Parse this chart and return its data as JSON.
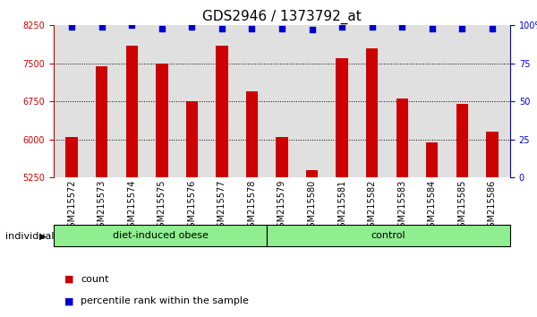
{
  "title": "GDS2946 / 1373792_at",
  "categories": [
    "GSM215572",
    "GSM215573",
    "GSM215574",
    "GSM215575",
    "GSM215576",
    "GSM215577",
    "GSM215578",
    "GSM215579",
    "GSM215580",
    "GSM215581",
    "GSM215582",
    "GSM215583",
    "GSM215584",
    "GSM215585",
    "GSM215586"
  ],
  "bar_values": [
    6050,
    7450,
    7850,
    7500,
    6750,
    7850,
    6950,
    6050,
    5400,
    7600,
    7800,
    6800,
    5950,
    6700,
    6150
  ],
  "percentile_values": [
    99,
    99,
    100,
    98,
    99,
    98,
    98,
    98,
    97,
    99,
    99,
    99,
    98,
    98,
    98
  ],
  "bar_color": "#cc0000",
  "dot_color": "#0000cc",
  "ylim_left": [
    5250,
    8250
  ],
  "ylim_right": [
    0,
    100
  ],
  "yticks_left": [
    5250,
    6000,
    6750,
    7500,
    8250
  ],
  "yticks_right": [
    0,
    25,
    50,
    75,
    100
  ],
  "ytick_labels_right": [
    "0",
    "25",
    "50",
    "75",
    "100%"
  ],
  "grid_lines": [
    6000,
    6750,
    7500
  ],
  "group1_label": "diet-induced obese",
  "group1_count": 7,
  "group2_label": "control",
  "group2_count": 8,
  "individual_label": "individual",
  "legend_count_label": "count",
  "legend_pct_label": "percentile rank within the sample",
  "bg_color_plot": "#e0e0e0",
  "bg_color_xtick": "#d0d0d0",
  "bg_color_group": "#90ee90",
  "title_fontsize": 11,
  "tick_fontsize": 7,
  "axis_color_left": "#cc0000",
  "axis_color_right": "#0000cc",
  "bar_width": 0.4,
  "dot_size": 15
}
